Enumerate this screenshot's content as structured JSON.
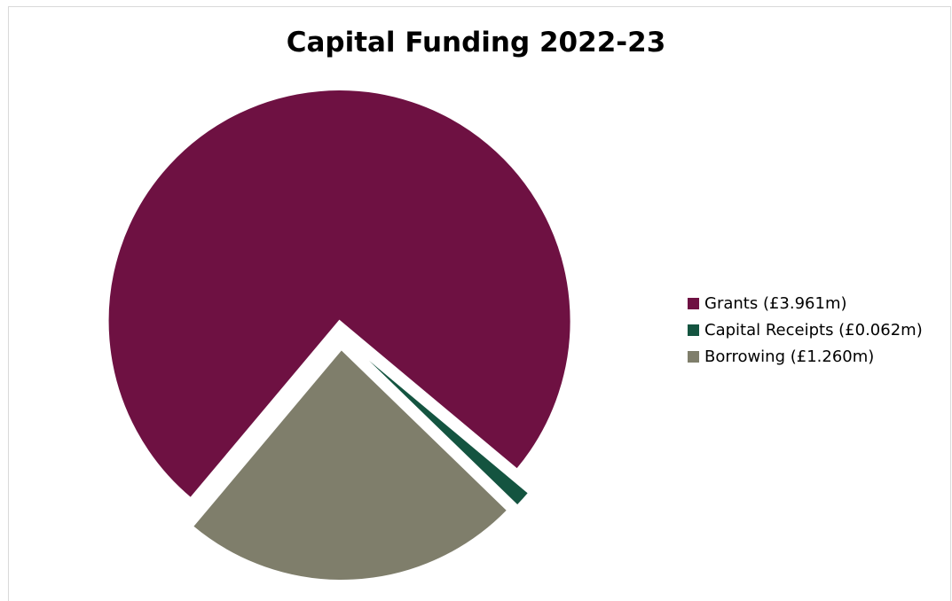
{
  "chart_data": {
    "type": "pie",
    "title": "Capital Funding 2022-23",
    "categories": [
      "Grants",
      "Capital Receipts",
      "Borrowing"
    ],
    "values": [
      3.961,
      0.062,
      1.26
    ],
    "unit": "£m",
    "legend_labels": [
      "Grants (£3.961m)",
      "Capital Receipts (£0.062m)",
      "Borrowing (£1.260m)"
    ],
    "colors": [
      "#6e1142",
      "#145440",
      "#7f7e6b"
    ],
    "exploded": true,
    "legend_position": "right"
  }
}
